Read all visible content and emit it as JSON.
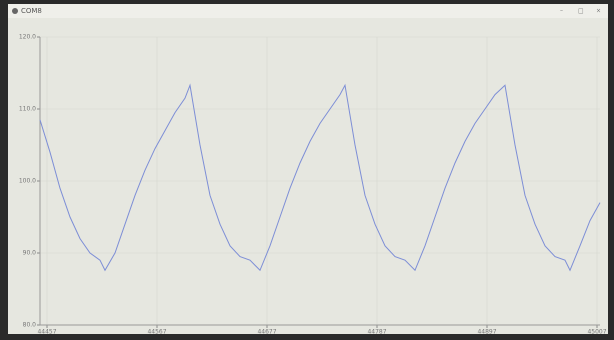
{
  "window_title": "COM8",
  "chart_data": {
    "type": "line",
    "x": [
      44450,
      44460,
      44470,
      44480,
      44490,
      44500,
      44510,
      44515,
      44525,
      44535,
      44545,
      44555,
      44565,
      44575,
      44585,
      44595,
      44600,
      44610,
      44620,
      44630,
      44640,
      44650,
      44660,
      44670,
      44680,
      44690,
      44700,
      44710,
      44720,
      44730,
      44740,
      44750,
      44755,
      44765,
      44775,
      44785,
      44795,
      44805,
      44815,
      44825,
      44835,
      44845,
      44855,
      44865,
      44875,
      44885,
      44895,
      44905,
      44915,
      44925,
      44935,
      44945,
      44955,
      44965,
      44975,
      44980,
      44990,
      45000,
      45010
    ],
    "series": [
      {
        "color": "#7d8ed6",
        "values": [
          108.5,
          104,
          99,
          95,
          92,
          90,
          89,
          87.6,
          90,
          94,
          98,
          101.5,
          104.5,
          107,
          109.5,
          111.5,
          113.3,
          105,
          98,
          94,
          91,
          89.5,
          89,
          87.6,
          91,
          95,
          99,
          102.5,
          105.5,
          108,
          110,
          112,
          113.3,
          105,
          98,
          94,
          91,
          89.5,
          89,
          87.6,
          91,
          95,
          99,
          102.5,
          105.5,
          108,
          110,
          112,
          113.3,
          105,
          98,
          94,
          91,
          89.5,
          89,
          87.6,
          91,
          94.5,
          97
        ]
      }
    ],
    "xlim": [
      44450,
      45010
    ],
    "xticks": [
      44457,
      44567,
      44677,
      44787,
      44897,
      45007
    ],
    "ylim": [
      80,
      120
    ],
    "yticks": [
      {
        "value": 80,
        "label": "80.0"
      },
      {
        "value": 90,
        "label": "90.0"
      },
      {
        "value": 100,
        "label": "100.0"
      },
      {
        "value": 110,
        "label": "110.0"
      },
      {
        "value": 120,
        "label": "120.0"
      }
    ],
    "grid": true
  }
}
